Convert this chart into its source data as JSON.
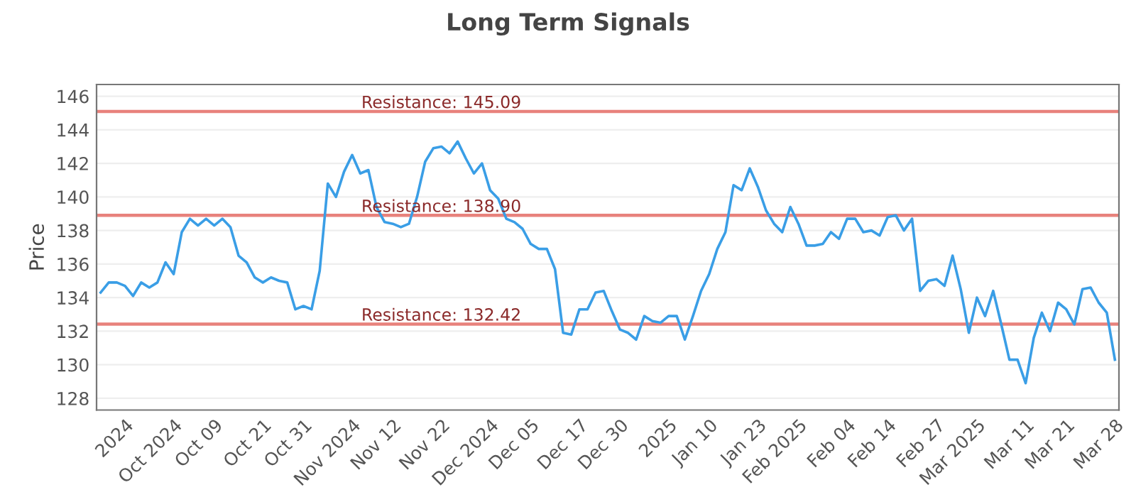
{
  "chart_data": {
    "type": "line",
    "title": "Long Term Signals",
    "ylabel": "Price",
    "categories": [
      null,
      null,
      null,
      "2024",
      null,
      null,
      null,
      null,
      null,
      "Oct 2024",
      null,
      null,
      null,
      null,
      "Oct 09",
      null,
      null,
      null,
      null,
      null,
      "Oct 21",
      null,
      null,
      null,
      null,
      "Oct 31",
      null,
      null,
      null,
      null,
      null,
      "Nov 2024",
      null,
      null,
      null,
      null,
      "Nov 12",
      null,
      null,
      null,
      null,
      null,
      "Nov 22",
      null,
      null,
      null,
      null,
      null,
      "Dec 2024",
      null,
      null,
      null,
      null,
      "Dec 05",
      null,
      null,
      null,
      null,
      null,
      "Dec 17",
      null,
      null,
      null,
      null,
      "Dec 30",
      null,
      null,
      null,
      null,
      null,
      "2025",
      null,
      null,
      null,
      null,
      "Jan 10",
      null,
      null,
      null,
      null,
      null,
      "Jan 23",
      null,
      null,
      null,
      null,
      "Feb 2025",
      null,
      null,
      null,
      null,
      null,
      "Feb 04",
      null,
      null,
      null,
      null,
      "Feb 14",
      null,
      null,
      null,
      null,
      null,
      "Feb 27",
      null,
      null,
      null,
      null,
      "Mar 2025",
      null,
      null,
      null,
      null,
      null,
      "Mar 11",
      null,
      null,
      null,
      null,
      "Mar 21",
      null,
      null,
      null,
      null,
      null,
      "Mar 28"
    ],
    "series": [
      {
        "color": "#3a9ee6",
        "values": [
          134.3,
          134.9,
          134.9,
          134.7,
          134.1,
          134.9,
          134.6,
          134.9,
          136.1,
          135.4,
          137.9,
          138.7,
          138.3,
          138.7,
          138.3,
          138.7,
          138.2,
          136.5,
          136.1,
          135.2,
          134.9,
          135.2,
          135.0,
          134.9,
          133.3,
          133.5,
          133.3,
          135.6,
          140.8,
          140.0,
          141.5,
          142.5,
          141.4,
          141.6,
          139.4,
          138.5,
          138.4,
          138.2,
          138.4,
          140.0,
          142.1,
          142.9,
          143.0,
          142.6,
          143.3,
          142.3,
          141.4,
          142.0,
          140.4,
          139.9,
          138.7,
          138.5,
          138.1,
          137.2,
          136.9,
          136.9,
          135.7,
          131.9,
          131.8,
          133.3,
          133.3,
          134.3,
          134.4,
          133.2,
          132.1,
          131.9,
          131.5,
          132.9,
          132.6,
          132.5,
          132.9,
          132.9,
          131.5,
          132.9,
          134.4,
          135.4,
          136.9,
          137.9,
          140.7,
          140.4,
          141.7,
          140.6,
          139.2,
          138.4,
          137.9,
          139.4,
          138.4,
          137.1,
          137.1,
          137.2,
          137.9,
          137.5,
          138.7,
          138.7,
          137.9,
          138.0,
          137.7,
          138.8,
          138.9,
          138.0,
          138.7,
          134.4,
          135.0,
          135.1,
          134.7,
          136.5,
          134.5,
          131.9,
          134.0,
          132.9,
          134.4,
          132.4,
          130.3,
          130.3,
          128.9,
          131.6,
          133.1,
          132.0,
          133.7,
          133.3,
          132.4,
          134.5,
          134.6,
          133.7,
          133.1,
          130.3
        ]
      }
    ],
    "ylim": [
      127.3,
      146.7
    ],
    "yticks": [
      128,
      130,
      132,
      134,
      136,
      138,
      140,
      142,
      144,
      146
    ],
    "grid": "y",
    "line_style": "solid",
    "marker": "none",
    "ref_lines": [
      {
        "axis": "y",
        "value": 145.09,
        "label": "Resistance: 145.09",
        "color": "#e8827c"
      },
      {
        "axis": "y",
        "value": 138.9,
        "label": "Resistance: 138.90",
        "color": "#e8827c"
      },
      {
        "axis": "y",
        "value": 132.42,
        "label": "Resistance: 132.42",
        "color": "#e8827c"
      }
    ]
  }
}
